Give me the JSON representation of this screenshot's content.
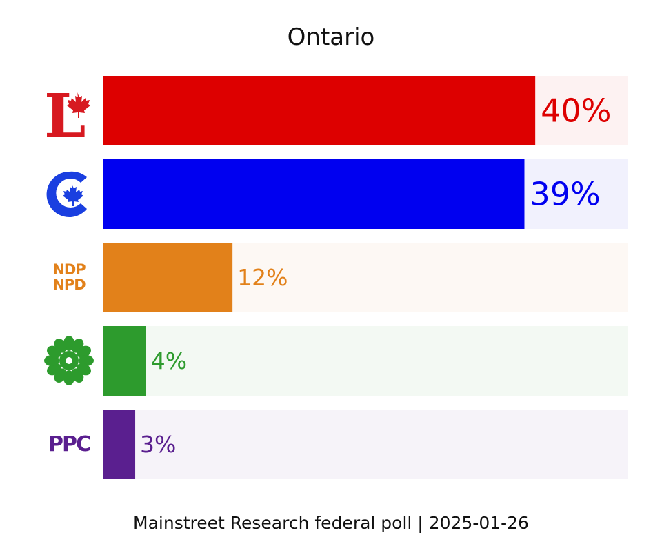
{
  "chart_data": {
    "type": "bar",
    "orientation": "horizontal",
    "title": "Ontario",
    "categories": [
      "Liberal",
      "Conservative",
      "NDP",
      "Green",
      "PPC"
    ],
    "values": [
      40,
      39,
      12,
      4,
      3
    ],
    "value_labels": [
      "40%",
      "39%",
      "12%",
      "4%",
      "3%"
    ],
    "colors": [
      "#dd0000",
      "#0000f0",
      "#e2811a",
      "#2d9b2d",
      "#5a1f8f"
    ],
    "track_colors": [
      "#fdf2f2",
      "#f1f1fd",
      "#fdf8f4",
      "#f3f9f3",
      "#f6f3f9"
    ],
    "xlim": [
      0,
      48.6
    ],
    "grid": false,
    "legend": "none"
  },
  "logos": {
    "liberal": {
      "icon": "liberal-logo-icon",
      "text": "L"
    },
    "conservative": {
      "icon": "conservative-logo-icon"
    },
    "ndp": {
      "icon": "ndp-logo-icon",
      "line1": "NDP",
      "line2": "NPD"
    },
    "green": {
      "icon": "green-logo-icon"
    },
    "ppc": {
      "icon": "ppc-logo-icon",
      "text": "PPC"
    }
  },
  "footer": "Mainstreet Research federal poll | 2025-01-26"
}
